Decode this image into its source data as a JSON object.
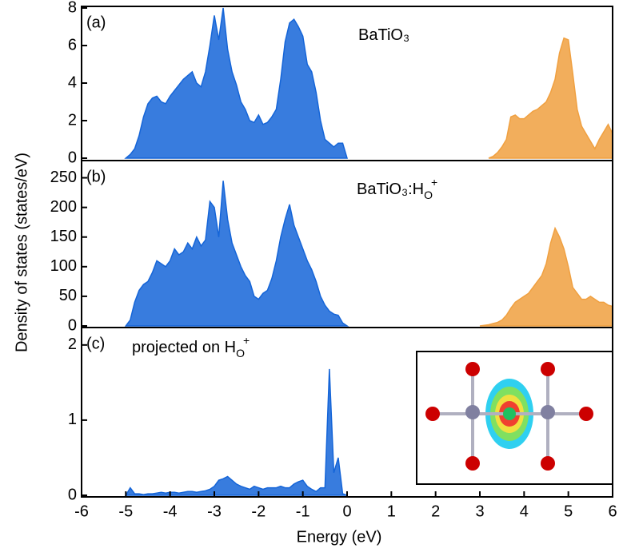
{
  "chart_data": [
    {
      "type": "area",
      "panel_label": "(a)",
      "annotation": [
        {
          "text": "BaTiO₃",
          "style": "normal"
        }
      ],
      "xlim": [
        -6,
        6
      ],
      "ylim": [
        0,
        8
      ],
      "yticks": [
        0,
        2,
        4,
        6,
        8
      ],
      "series": [
        {
          "color": "#1565d8",
          "x": [
            -5.0,
            -4.9,
            -4.8,
            -4.7,
            -4.6,
            -4.5,
            -4.4,
            -4.3,
            -4.2,
            -4.1,
            -4.0,
            -3.9,
            -3.8,
            -3.7,
            -3.6,
            -3.5,
            -3.4,
            -3.3,
            -3.2,
            -3.1,
            -3.0,
            -2.9,
            -2.8,
            -2.7,
            -2.6,
            -2.5,
            -2.4,
            -2.3,
            -2.2,
            -2.1,
            -2.0,
            -1.9,
            -1.8,
            -1.7,
            -1.6,
            -1.5,
            -1.4,
            -1.3,
            -1.2,
            -1.1,
            -1.0,
            -0.9,
            -0.8,
            -0.7,
            -0.6,
            -0.5,
            -0.4,
            -0.3,
            -0.2,
            -0.1,
            0.0
          ],
          "values": [
            0,
            0.2,
            0.5,
            1.2,
            2.2,
            2.9,
            3.2,
            3.3,
            3.0,
            2.9,
            3.3,
            3.6,
            3.9,
            4.2,
            4.4,
            4.6,
            4.0,
            3.8,
            4.6,
            6.0,
            7.6,
            6.3,
            8,
            5.8,
            4.6,
            3.9,
            3.0,
            2.6,
            2.0,
            1.9,
            2.3,
            1.8,
            1.9,
            2.2,
            2.6,
            4.2,
            6.2,
            7.2,
            7.4,
            7.0,
            6.5,
            5.0,
            4.6,
            3.5,
            2.0,
            1.0,
            0.8,
            0.6,
            0.8,
            0.8,
            0
          ]
        },
        {
          "color": "#f0a040",
          "x": [
            3.2,
            3.3,
            3.4,
            3.5,
            3.6,
            3.7,
            3.8,
            3.9,
            4.0,
            4.1,
            4.2,
            4.3,
            4.4,
            4.5,
            4.6,
            4.7,
            4.8,
            4.9,
            5.0,
            5.1,
            5.2,
            5.3,
            5.4,
            5.5,
            5.6,
            5.7,
            5.8,
            5.9,
            6.0
          ],
          "values": [
            0,
            0.1,
            0.3,
            0.6,
            1.0,
            2.2,
            2.3,
            2.1,
            2.1,
            2.3,
            2.5,
            2.6,
            2.8,
            3.0,
            3.5,
            4.2,
            5.6,
            6.4,
            6.3,
            4.5,
            2.6,
            1.7,
            1.3,
            0.9,
            0.5,
            1.0,
            1.4,
            1.8,
            1.3
          ]
        }
      ]
    },
    {
      "type": "area",
      "panel_label": "(b)",
      "ylabel": "Density of states (states/eV)",
      "annotation": [
        {
          "text": "BaTiO₃:H",
          "style": "normal"
        },
        {
          "text": "O",
          "style": "sub"
        },
        {
          "text": "+",
          "style": "sup"
        }
      ],
      "xlim": [
        -6,
        6
      ],
      "ylim": [
        0,
        275
      ],
      "yticks": [
        0,
        50,
        100,
        150,
        200,
        250
      ],
      "series": [
        {
          "color": "#1565d8",
          "x": [
            -5.0,
            -4.9,
            -4.8,
            -4.7,
            -4.6,
            -4.5,
            -4.4,
            -4.3,
            -4.2,
            -4.1,
            -4.0,
            -3.9,
            -3.8,
            -3.7,
            -3.6,
            -3.5,
            -3.4,
            -3.3,
            -3.2,
            -3.1,
            -3.0,
            -2.9,
            -2.8,
            -2.7,
            -2.6,
            -2.5,
            -2.4,
            -2.3,
            -2.2,
            -2.1,
            -2.0,
            -1.9,
            -1.8,
            -1.7,
            -1.6,
            -1.5,
            -1.4,
            -1.3,
            -1.2,
            -1.1,
            -1.0,
            -0.9,
            -0.8,
            -0.7,
            -0.6,
            -0.5,
            -0.4,
            -0.3,
            -0.2,
            -0.1,
            0.0
          ],
          "values": [
            0,
            10,
            40,
            60,
            70,
            75,
            90,
            110,
            105,
            100,
            110,
            130,
            120,
            125,
            140,
            130,
            150,
            135,
            145,
            210,
            200,
            150,
            245,
            180,
            140,
            120,
            100,
            85,
            75,
            50,
            45,
            55,
            60,
            80,
            110,
            150,
            180,
            205,
            170,
            150,
            130,
            110,
            95,
            75,
            50,
            35,
            25,
            20,
            18,
            5,
            0
          ]
        },
        {
          "color": "#f0a040",
          "x": [
            3.0,
            3.1,
            3.2,
            3.3,
            3.4,
            3.5,
            3.6,
            3.7,
            3.8,
            3.9,
            4.0,
            4.1,
            4.2,
            4.3,
            4.4,
            4.5,
            4.6,
            4.7,
            4.8,
            4.9,
            5.0,
            5.1,
            5.2,
            5.3,
            5.4,
            5.5,
            5.6,
            5.7,
            5.8,
            5.9,
            6.0
          ],
          "values": [
            0,
            1,
            2,
            4,
            6,
            10,
            18,
            30,
            40,
            45,
            50,
            55,
            65,
            75,
            85,
            105,
            140,
            165,
            150,
            130,
            100,
            65,
            55,
            45,
            45,
            50,
            45,
            40,
            40,
            35,
            33
          ]
        }
      ]
    },
    {
      "type": "area",
      "panel_label": "(c)",
      "xlabel": "Energy (eV)",
      "annotation": [
        {
          "text": "projected on H",
          "style": "normal"
        },
        {
          "text": "O",
          "style": "sub"
        },
        {
          "text": "+",
          "style": "sup"
        }
      ],
      "xlim": [
        -6,
        6
      ],
      "xticks": [
        -6,
        -5,
        -4,
        -3,
        -2,
        -1,
        0,
        1,
        2,
        3,
        4,
        5,
        6
      ],
      "ylim": [
        0,
        2.2
      ],
      "yticks": [
        0,
        1,
        2
      ],
      "series": [
        {
          "color": "#1565d8",
          "x": [
            -5.0,
            -4.9,
            -4.8,
            -4.7,
            -4.6,
            -4.5,
            -4.4,
            -4.3,
            -4.2,
            -4.1,
            -4.0,
            -3.9,
            -3.8,
            -3.7,
            -3.6,
            -3.5,
            -3.4,
            -3.3,
            -3.2,
            -3.1,
            -3.0,
            -2.9,
            -2.8,
            -2.7,
            -2.6,
            -2.5,
            -2.4,
            -2.3,
            -2.2,
            -2.1,
            -2.0,
            -1.9,
            -1.8,
            -1.7,
            -1.6,
            -1.5,
            -1.4,
            -1.3,
            -1.2,
            -1.1,
            -1.0,
            -0.9,
            -0.8,
            -0.7,
            -0.6,
            -0.5,
            -0.4,
            -0.3,
            -0.2,
            -0.1,
            0.0
          ],
          "values": [
            0,
            0.1,
            0.02,
            0.02,
            0.01,
            0.02,
            0.02,
            0.03,
            0.04,
            0.03,
            0.04,
            0.04,
            0.03,
            0.04,
            0.05,
            0.05,
            0.04,
            0.05,
            0.06,
            0.08,
            0.12,
            0.2,
            0.22,
            0.25,
            0.2,
            0.15,
            0.12,
            0.1,
            0.08,
            0.12,
            0.1,
            0.08,
            0.1,
            0.1,
            0.1,
            0.12,
            0.1,
            0.1,
            0.15,
            0.18,
            0.2,
            0.12,
            0.08,
            0.05,
            0.1,
            0.1,
            1.68,
            0.3,
            0.5,
            0.02,
            0
          ]
        }
      ]
    }
  ]
}
